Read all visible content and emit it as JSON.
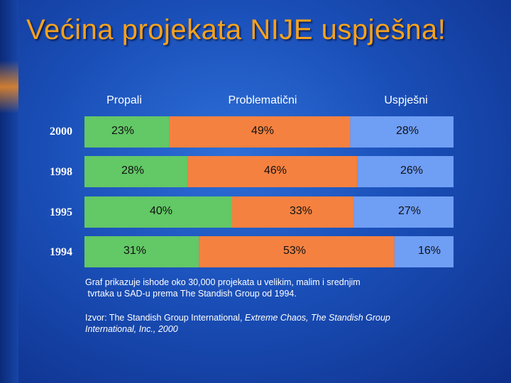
{
  "title": "Većina projekata NIJE uspješna!",
  "colors": {
    "propali": "#63c866",
    "problematicni": "#f58140",
    "uspjesni": "#6f9ef5"
  },
  "chart_data": {
    "type": "bar",
    "orientation": "horizontal-stacked",
    "categories": [
      "2000",
      "1998",
      "1995",
      "1994"
    ],
    "series": [
      {
        "name": "Propali",
        "values": [
          23,
          28,
          40,
          31
        ]
      },
      {
        "name": "Problematični",
        "values": [
          49,
          46,
          33,
          53
        ]
      },
      {
        "name": "Uspješni",
        "values": [
          28,
          26,
          27,
          16
        ]
      }
    ],
    "value_labels": [
      [
        "23%",
        "49%",
        "28%"
      ],
      [
        "28%",
        "46%",
        "26%"
      ],
      [
        "40%",
        "33%",
        "27%"
      ],
      [
        "31%",
        "53%",
        "16%"
      ]
    ]
  },
  "notes": {
    "line1": "Graf prikazuje ishode oko 30,000 projekata u velikim, malim i srednjim",
    "line2": " tvrtaka u SAD-u prema The Standish Group od 1994.",
    "source_prefix": "Izvor: The Standish Group International, ",
    "source_italic": "Extreme Chaos, The Standish Group International, Inc., 2000"
  }
}
